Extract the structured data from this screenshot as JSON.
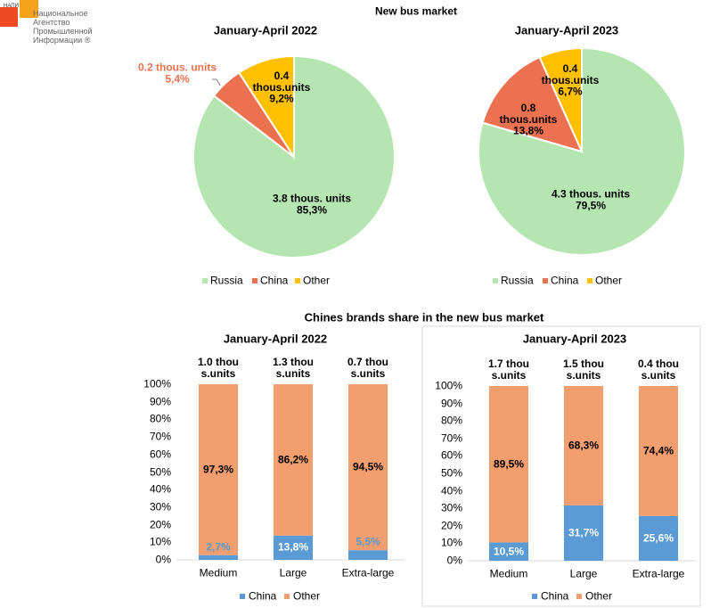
{
  "logo": {
    "abbr": "НАПИ",
    "lines": [
      "Национальное",
      "Агентство",
      "Промышленной",
      "Информации ®"
    ]
  },
  "section_titles": [
    "New bus market",
    "Chines brands share in the new bus market"
  ],
  "chart_data": [
    {
      "type": "pie",
      "title": "January-April 2022",
      "categories": [
        "Russia",
        "China",
        "Other"
      ],
      "values": [
        85.3,
        5.4,
        9.2
      ],
      "value_labels": [
        "85,3%",
        "5,4%",
        "9,2%"
      ],
      "count_labels": [
        "3.8 thous. units",
        "0.2 thous. units",
        "0.4 thous.units"
      ],
      "colors": [
        "#b5e6b1",
        "#ec7150",
        "#ffc000"
      ],
      "legend": "bottom"
    },
    {
      "type": "pie",
      "title": "January-April 2023",
      "categories": [
        "Russia",
        "China",
        "Other"
      ],
      "values": [
        79.5,
        13.8,
        6.7
      ],
      "value_labels": [
        "79,5%",
        "13,8%",
        "6,7%"
      ],
      "count_labels": [
        "4.3 thous. units",
        "0.8 thous.units",
        "0.4 thous.units"
      ],
      "colors": [
        "#b5e6b1",
        "#ec7150",
        "#ffc000"
      ],
      "legend": "bottom"
    },
    {
      "type": "stacked_bar",
      "title": "January-April 2022",
      "categories": [
        "Medium",
        "Large",
        "Extra-large"
      ],
      "total_labels": [
        "1.0 thous.units",
        "1.3 thous.units",
        "0.7 thous.units"
      ],
      "series": [
        {
          "name": "China",
          "color": "#5b9bd5",
          "values": [
            2.7,
            13.8,
            5.5
          ],
          "value_labels": [
            "2,7%",
            "13,8%",
            "5,5%"
          ]
        },
        {
          "name": "Other",
          "color": "#f29e6f",
          "values": [
            97.3,
            86.2,
            94.5
          ],
          "value_labels": [
            "97,3%",
            "86,2%",
            "94,5%"
          ]
        }
      ],
      "ylim": [
        0,
        100
      ],
      "yticks": [
        {
          "value": 0,
          "label": "0%"
        },
        {
          "value": 10,
          "label": "10%"
        },
        {
          "value": 20,
          "label": "20%"
        },
        {
          "value": 30,
          "label": "30%"
        },
        {
          "value": 40,
          "label": "40%"
        },
        {
          "value": 50,
          "label": "50%"
        },
        {
          "value": 60,
          "label": "60%"
        },
        {
          "value": 70,
          "label": "70%"
        },
        {
          "value": 80,
          "label": "80%"
        },
        {
          "value": 90,
          "label": "90%"
        },
        {
          "value": 100,
          "label": "100%"
        }
      ],
      "grid": false,
      "legend": "bottom"
    },
    {
      "type": "stacked_bar",
      "title": "January-April 2023",
      "categories": [
        "Medium",
        "Large",
        "Extra-large"
      ],
      "total_labels": [
        "1.7 thous.units",
        "1.5 thous.units",
        "0.4 thous.units"
      ],
      "series": [
        {
          "name": "China",
          "color": "#5b9bd5",
          "values": [
            10.5,
            31.7,
            25.6
          ],
          "value_labels": [
            "10,5%",
            "31,7%",
            "25,6%"
          ]
        },
        {
          "name": "Other",
          "color": "#f29e6f",
          "values": [
            89.5,
            68.3,
            74.4
          ],
          "value_labels": [
            "89,5%",
            "68,3%",
            "74,4%"
          ]
        }
      ],
      "ylim": [
        0,
        100
      ],
      "yticks": [
        {
          "value": 0,
          "label": "0%"
        },
        {
          "value": 10,
          "label": "10%"
        },
        {
          "value": 20,
          "label": "20%"
        },
        {
          "value": 30,
          "label": "30%"
        },
        {
          "value": 40,
          "label": "40%"
        },
        {
          "value": 50,
          "label": "50%"
        },
        {
          "value": 60,
          "label": "60%"
        },
        {
          "value": 70,
          "label": "70%"
        },
        {
          "value": 80,
          "label": "80%"
        },
        {
          "value": 90,
          "label": "90%"
        },
        {
          "value": 100,
          "label": "100%"
        }
      ],
      "grid": false,
      "legend": "bottom"
    }
  ]
}
